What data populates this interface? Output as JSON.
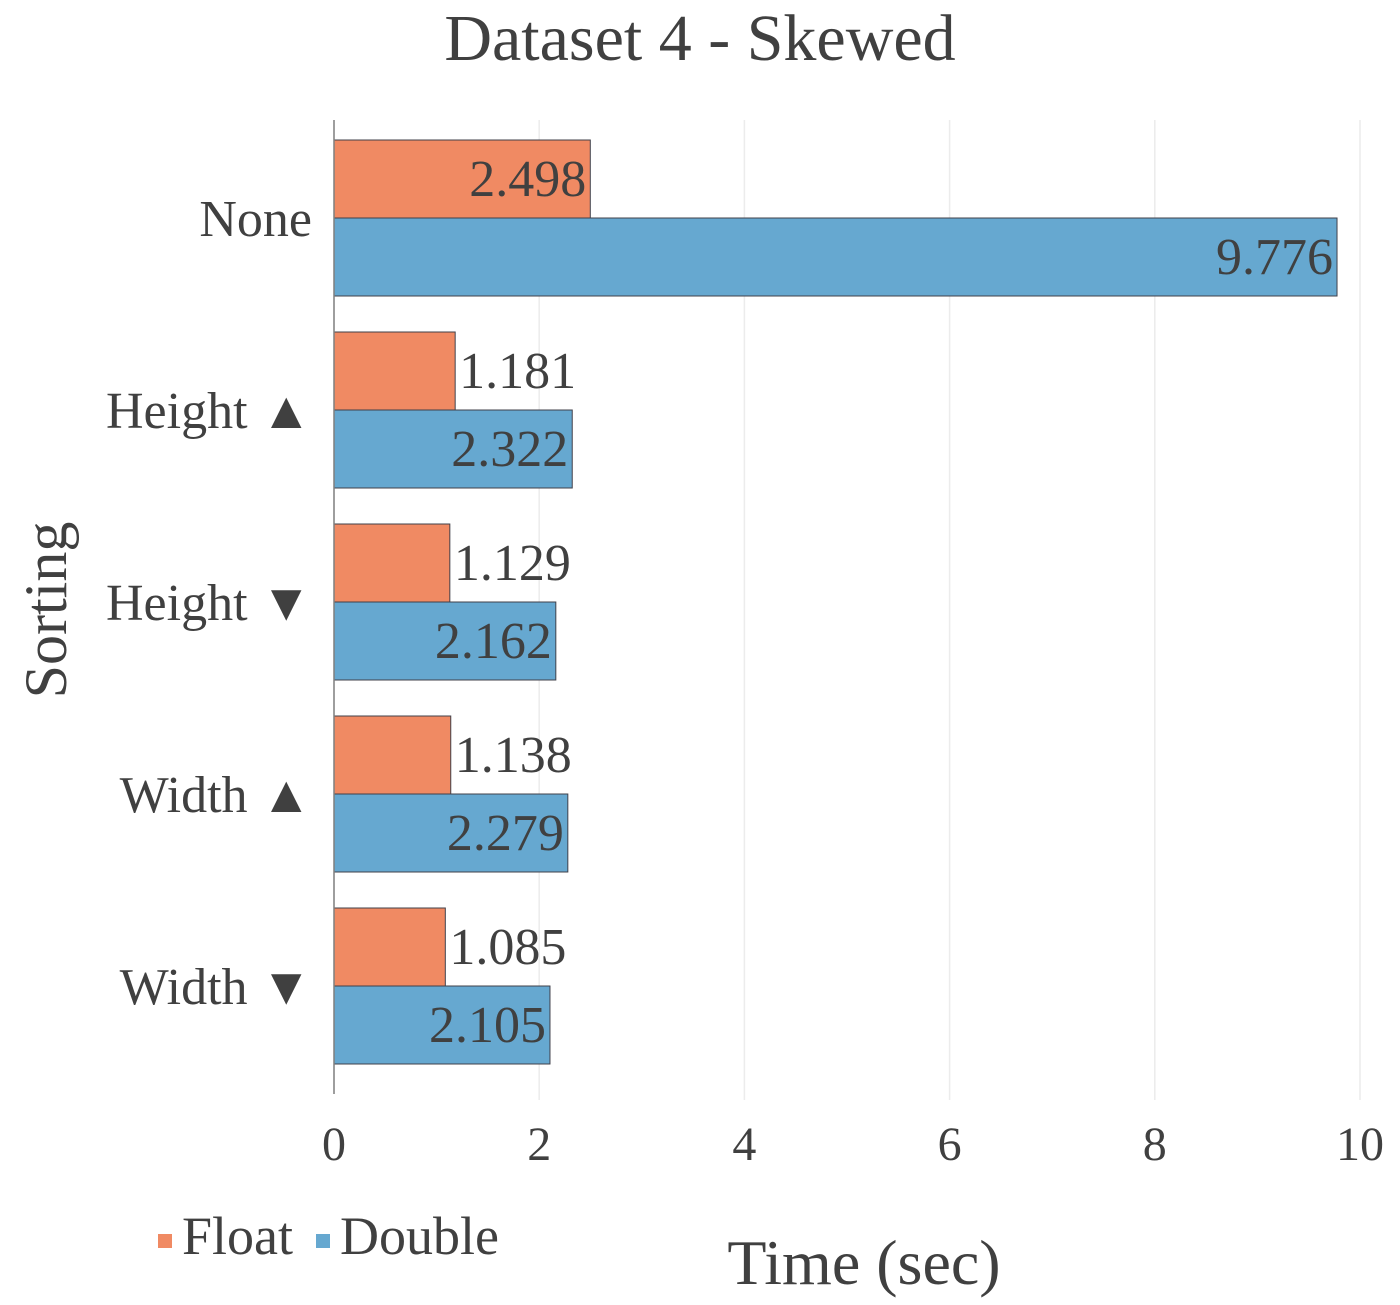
{
  "chart_data": {
    "type": "bar",
    "orientation": "horizontal",
    "title": "Dataset 4 - Skewed",
    "xlabel": "Time (sec)",
    "ylabel": "Sorting",
    "xlim": [
      0,
      10
    ],
    "xticks": [
      "0",
      "2",
      "4",
      "6",
      "8",
      "10"
    ],
    "categories": [
      "None",
      "Height ▲",
      "Height ▼",
      "Width ▲",
      "Width ▼"
    ],
    "series": [
      {
        "name": "Float",
        "color": "#f08a63",
        "values": [
          2.498,
          1.181,
          1.129,
          1.138,
          1.085
        ],
        "labels": [
          "2.498",
          "1.181",
          "1.129",
          "1.138",
          "1.085"
        ]
      },
      {
        "name": "Double",
        "color": "#66a8d0",
        "values": [
          9.776,
          2.322,
          2.162,
          2.279,
          2.105
        ],
        "labels": [
          "9.776",
          "2.322",
          "2.162",
          "2.279",
          "2.105"
        ]
      }
    ],
    "grid": "vertical",
    "legend_position": "bottom-left",
    "data_labels": true
  }
}
